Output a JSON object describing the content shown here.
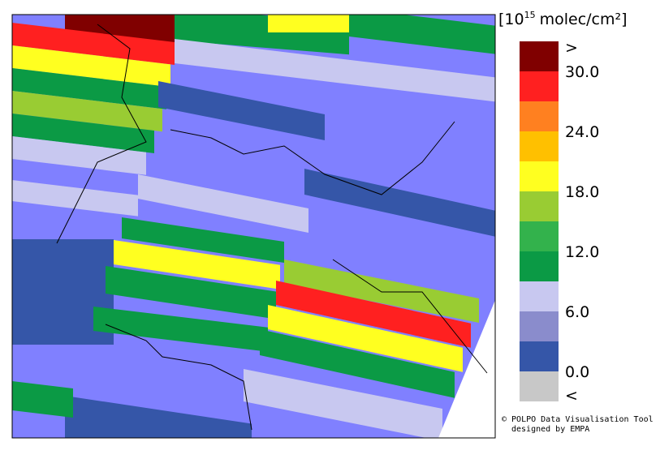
{
  "legend": {
    "title": {
      "base": "[10",
      "exponent": "15",
      "unit": "molec/cm²]"
    },
    "labels": [
      ">",
      "30.0",
      "24.0",
      "18.0",
      "12.0",
      "6.0",
      "0.0",
      "<"
    ],
    "colors": [
      "#800000",
      "#ff2020",
      "#ff8020",
      "#ffc000",
      "#ffff20",
      "#99cc33",
      "#33b24c",
      "#0b9a45",
      "#c8c8f0",
      "#8a8ccc",
      "#3556a8",
      "#c8c8c8"
    ]
  },
  "credit": [
    "© POLPO Data Visualisation Tool",
    "designed by EMPA"
  ]
}
